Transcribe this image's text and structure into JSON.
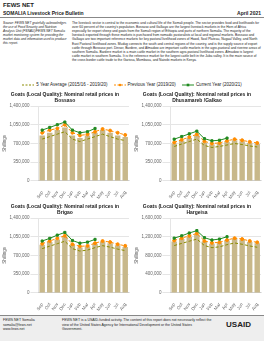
{
  "title": "SOMALIA Livestock Price Bulletin",
  "subtitle": "April 2021",
  "annotations": [
    "FEWS NET",
    "The livestock sector is central to the economic and cultural life of the Somali people. The sector provides food and livelihoods for over 60 percent of the country's population. Bossaso and Galkayo are the largest livestock markets in the Horn of Africa especially for export sheep and goats from the Somali region of Ethiopia and parts of northern Somalia. The majority of the livestock exported through these markets is purchased from nomadic pastoralists at local and regional markets. Bossaso and Galkayo are two important reference markets for key pastoral livelihood zones of Hawd, Sool Plateau, Nugaal Valley, and North East Pastoral livelihood zones. Mudug connects the south and central regions of the country, and is the supply source of export cattle through Bossaso port. Dinsor, Bardere, and Afmadow are important cattle markets in the agro-pastoral and riverine areas of southern Somalia. Bardere market is a main cattle market in the southern agro-pastoral livelihood zones. Afmadow is largest cattle market in southern Somalia. It is the reference market for the largest cattle belt in the Juba valley. It is the main source of the cross border cattle trade to the Garissa, Mombasa, and Nairobi markets in Kenya.",
    "Source: FEWS NET gratefully acknowledges the use of Food Security and Nutrition Analysis Unit (FSNAU)/FEWS NET Somalia market monitoring system for providing the market data and information used to produce this report.",
    "FEWS NET Somalia\nsomalia@fews.net\nwww.fews.net",
    "FEWS NET is a USAID-funded activity. The content of this report does not necessarily reflect the view of the United States Agency for International Development or the United States Government.",
    "USAID"
  ],
  "chart_data": [
    {
      "type": "bar",
      "title": "Goats (Local Quality): Nominal retail prices in Bossaso",
      "ylabel": "Shillings",
      "categories": [
        "Sep",
        "Oct",
        "Nov",
        "Dec",
        "Jan",
        "Feb",
        "Mar",
        "Apr",
        "May",
        "Jun",
        "Jul",
        "Aug"
      ],
      "series": [
        {
          "type": "bar",
          "color": "#C8B88A",
          "values": [
            850000,
            900000,
            950000,
            1000000,
            850000,
            800000,
            850000,
            900000,
            950000,
            900000,
            850000,
            820000
          ]
        },
        {
          "name": "5 Year Average (2015/16 - 2019/20)",
          "type": "line",
          "color": "#8B8B00",
          "line_style": "dashed",
          "marker": "none",
          "values": [
            782000,
            828000,
            874000,
            920000,
            782000,
            736000,
            782000,
            828000,
            874000,
            828000,
            782000,
            754400
          ]
        },
        {
          "name": "Previous Year (2019/20)",
          "type": "line",
          "color": "#FF8C00",
          "line_style": "dashed",
          "marker": "circle",
          "values": [
            900000,
            950000,
            980000,
            1050000,
            900000,
            850000,
            870000,
            920000,
            970000,
            940000,
            900000,
            860000
          ]
        },
        {
          "name": "Current Year (2020/21)",
          "type": "line",
          "color": "#228B22",
          "line_style": "solid",
          "marker": "square",
          "values": [
            950000,
            1000000,
            1050000,
            1100000,
            950000,
            900000,
            920000,
            980000,
            null,
            null,
            null,
            null
          ]
        }
      ],
      "ylim": [
        0,
        1400000
      ],
      "yticks": [
        0,
        {
          "value": 350000,
          "label": "350,000"
        },
        {
          "value": 700000,
          "label": "700,000"
        },
        {
          "value": 1050000,
          "label": "1,050,000"
        },
        {
          "value": 1400000,
          "label": "1,400,000"
        }
      ],
      "grid": true
    },
    {
      "type": "bar",
      "title": "Goats (Local Quality): Nominal retail prices in Dhusamareb /Galkao",
      "ylabel": "Shillings",
      "categories": [
        "Sep",
        "Oct",
        "Nov",
        "Dec",
        "Jan",
        "Feb",
        "Mar",
        "Apr",
        "May",
        "Jun",
        "Jul",
        "Aug"
      ],
      "series": [
        {
          "type": "bar",
          "color": "#C8B88A",
          "values": [
            700000,
            750000,
            800000,
            850000,
            720000,
            680000,
            700000,
            730000,
            760000,
            740000,
            710000,
            690000
          ]
        },
        {
          "name": "5 Year Average (2015/16 - 2019/20)",
          "type": "line",
          "color": "#8B8B00",
          "line_style": "dashed",
          "marker": "none",
          "values": [
            644000,
            690000,
            736000,
            782000,
            662400,
            625600,
            644000,
            671600,
            699200,
            680800,
            653200,
            634800
          ]
        },
        {
          "name": "Previous Year (2019/20)",
          "type": "line",
          "color": "#FF8C00",
          "line_style": "dashed",
          "marker": "circle",
          "values": [
            720000,
            770000,
            820000,
            870000,
            740000,
            700000,
            710000,
            750000,
            780000,
            760000,
            730000,
            710000
          ]
        },
        {
          "name": "Current Year (2020/21)",
          "type": "line",
          "color": "#228B22",
          "line_style": "solid",
          "marker": "square",
          "values": [
            780000,
            830000,
            880000,
            930000,
            790000,
            750000,
            760000,
            800000,
            null,
            null,
            null,
            null
          ]
        }
      ],
      "ylim": [
        0,
        1400000
      ],
      "yticks": [
        0,
        {
          "value": 350000,
          "label": "350,000"
        },
        {
          "value": 700000,
          "label": "700,000"
        },
        {
          "value": 1050000,
          "label": "1,050,000"
        },
        {
          "value": 1400000,
          "label": "1,400,000"
        }
      ],
      "grid": true
    },
    {
      "type": "bar",
      "title": "Goats (Local Quality): Nominal retail prices in Brigao",
      "ylabel": "Shillings",
      "categories": [
        "Sep",
        "Oct",
        "Nov",
        "Dec",
        "Jan",
        "Feb",
        "Mar",
        "Apr",
        "May",
        "Jun",
        "Jul",
        "Aug"
      ],
      "series": [
        {
          "type": "bar",
          "color": "#C8B88A",
          "values": [
            900000,
            950000,
            1000000,
            1050000,
            900000,
            850000,
            870000,
            920000,
            960000,
            930000,
            890000,
            860000
          ]
        },
        {
          "name": "5 Year Average (2015/16 - 2019/20)",
          "type": "line",
          "color": "#8B8B00",
          "line_style": "dashed",
          "marker": "none",
          "values": [
            828000,
            874000,
            920000,
            966000,
            828000,
            782000,
            800400,
            846400,
            883200,
            855600,
            818800,
            791200
          ]
        },
        {
          "name": "Previous Year (2019/20)",
          "type": "line",
          "color": "#FF8C00",
          "line_style": "dashed",
          "marker": "circle",
          "values": [
            920000,
            970000,
            1020000,
            1070000,
            910000,
            870000,
            880000,
            930000,
            970000,
            950000,
            910000,
            880000
          ]
        },
        {
          "name": "Current Year (2020/21)",
          "type": "line",
          "color": "#228B22",
          "line_style": "solid",
          "marker": "square",
          "values": [
            970000,
            1020000,
            1080000,
            1130000,
            980000,
            930000,
            950000,
            1000000,
            null,
            null,
            null,
            null
          ]
        }
      ],
      "ylim": [
        0,
        1400000
      ],
      "yticks": [
        0,
        {
          "value": 350000,
          "label": "350,000"
        },
        {
          "value": 700000,
          "label": "700,000"
        },
        {
          "value": 1050000,
          "label": "1,050,000"
        },
        {
          "value": 1400000,
          "label": "1,400,000"
        }
      ],
      "grid": true
    },
    {
      "type": "bar",
      "title": "Goats (Local Quality): Nominal retail prices in Hargeisa",
      "ylabel": "Shillings",
      "categories": [
        "Sep",
        "Oct",
        "Nov",
        "Dec",
        "Jan",
        "Feb",
        "Mar",
        "Apr",
        "May",
        "Jun",
        "Jul",
        "Aug"
      ],
      "series": [
        {
          "type": "bar",
          "color": "#C8B88A",
          "values": [
            1100000,
            1150000,
            1200000,
            1250000,
            1100000,
            1050000,
            1070000,
            1120000,
            1160000,
            1130000,
            1090000,
            1060000
          ]
        },
        {
          "name": "5 Year Average (2015/16 - 2019/20)",
          "type": "line",
          "color": "#8B8B00",
          "line_style": "dashed",
          "marker": "none",
          "values": [
            1012000,
            1058000,
            1104000,
            1150000,
            1012000,
            966000,
            984400,
            1030400,
            1067200,
            1039600,
            1002800,
            975200
          ]
        },
        {
          "name": "Previous Year (2019/20)",
          "type": "line",
          "color": "#FF8C00",
          "line_style": "dashed",
          "marker": "circle",
          "values": [
            1120000,
            1170000,
            1220000,
            1270000,
            1110000,
            1070000,
            1080000,
            1130000,
            1170000,
            1150000,
            1110000,
            1080000
          ]
        },
        {
          "name": "Current Year (2020/21)",
          "type": "line",
          "color": "#228B22",
          "line_style": "solid",
          "marker": "square",
          "values": [
            1170000,
            1220000,
            1280000,
            1330000,
            1180000,
            1130000,
            1150000,
            1200000,
            null,
            null,
            null,
            null
          ]
        }
      ],
      "ylim": [
        0,
        1600000
      ],
      "yticks": [
        0,
        {
          "value": 400000,
          "label": "400,000"
        },
        {
          "value": 800000,
          "label": "800,000"
        },
        {
          "value": 1200000,
          "label": "1,200,000"
        },
        {
          "value": 1600000,
          "label": "1,600,000"
        }
      ],
      "grid": true
    }
  ]
}
